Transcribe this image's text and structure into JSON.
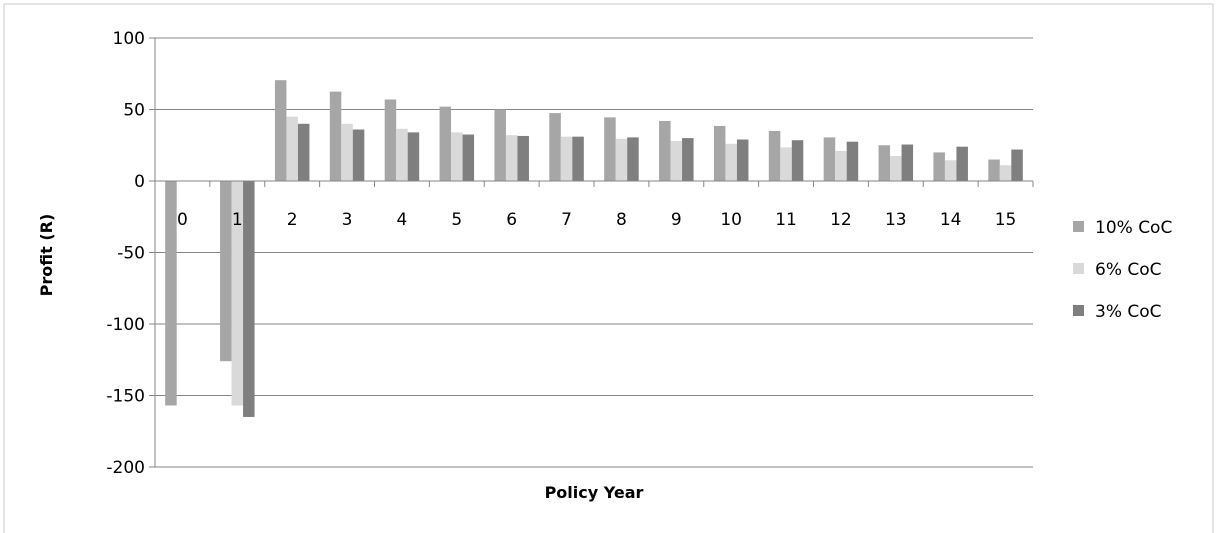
{
  "chart_data": {
    "type": "bar",
    "title": "",
    "xlabel": "Policy Year",
    "ylabel": "Profit (R)",
    "ylim": [
      -200,
      100
    ],
    "y_ticks": [
      -200,
      -150,
      -100,
      -50,
      0,
      50,
      100
    ],
    "categories": [
      "0",
      "1",
      "2",
      "3",
      "4",
      "5",
      "6",
      "7",
      "8",
      "9",
      "10",
      "11",
      "12",
      "13",
      "14",
      "15"
    ],
    "grid": true,
    "legend_position": "right",
    "series": [
      {
        "name": "10% CoC",
        "color": "#a6a6a6",
        "values": [
          -157,
          -126,
          70.5,
          62.5,
          57,
          52,
          50,
          47.5,
          44.5,
          42,
          38.5,
          35,
          30.5,
          25,
          20,
          15
        ]
      },
      {
        "name": "6% CoC",
        "color": "#d9d9d9",
        "values": [
          0,
          -157,
          45,
          40,
          36.5,
          34,
          32,
          31,
          29.5,
          28,
          26,
          23.5,
          21,
          17.5,
          14.5,
          11
        ]
      },
      {
        "name": "3% CoC",
        "color": "#7f7f7f",
        "values": [
          0,
          -165,
          40,
          36,
          34,
          32.5,
          31.5,
          31,
          30.5,
          30,
          29,
          28.5,
          27.5,
          25.5,
          24,
          22
        ]
      }
    ]
  }
}
